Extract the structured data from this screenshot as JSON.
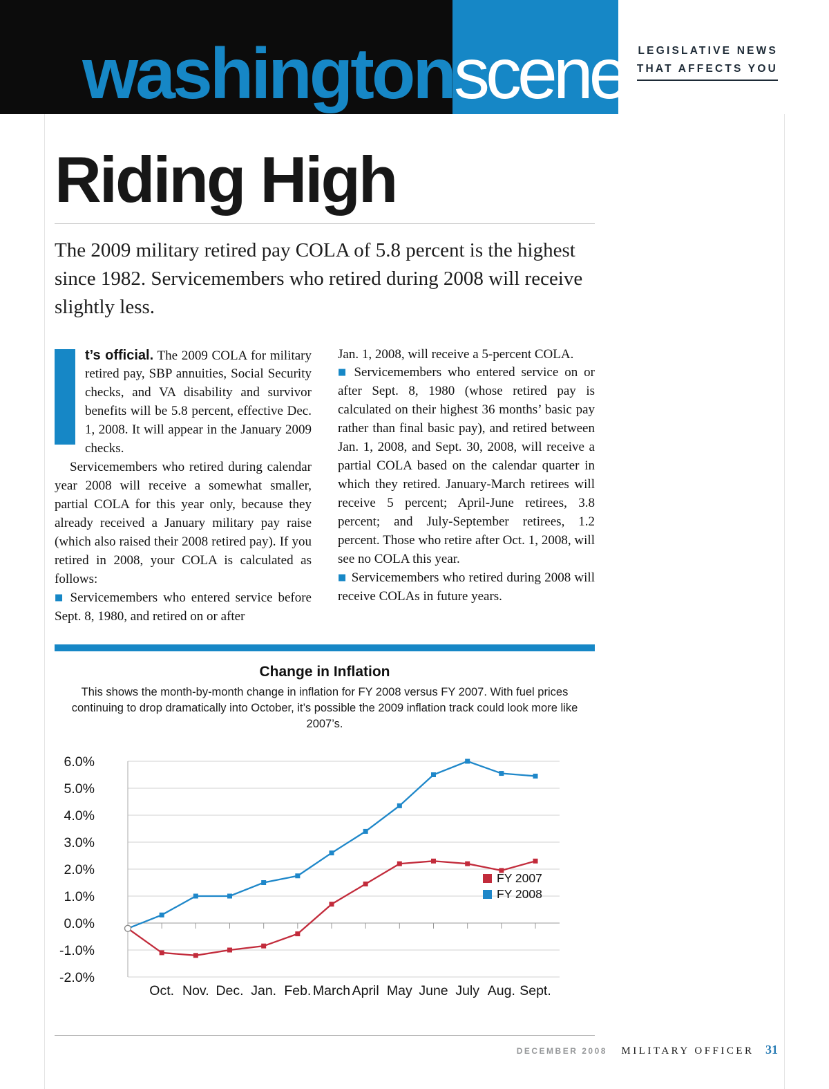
{
  "colors": {
    "accent_blue": "#1687c6",
    "masthead_black": "#0c0c0c",
    "line_red": "#c22b3b",
    "line_blue": "#1e87c9"
  },
  "header": {
    "brand_left": "washington",
    "brand_right": "scene",
    "tagline_line1": "LEGISLATIVE NEWS",
    "tagline_line2": "THAT AFFECTS YOU"
  },
  "article": {
    "title": "Riding High",
    "deck": "The 2009 military retired pay COLA of 5.8 percent is the highest since 1982. Servicemembers who retired during 2008 will receive slightly less.",
    "drop_cap": "I",
    "columns": [
      [
        {
          "style": "lead",
          "bold": "t’s official.",
          "text": " The 2009 COLA for military retired pay, SBP annuities, Social Security checks, and VA disability and survivor benefits will be 5.8 percent, effective Dec. 1, 2008. It will appear in the January 2009 checks."
        },
        {
          "style": "indent",
          "text": "Servicemembers who retired during calendar year 2008 will receive a somewhat smaller, partial COLA for this year only, because they already received a January military pay raise (which also raised their 2008 retired pay). If you retired in 2008, your COLA is calculated as follows:"
        },
        {
          "style": "bullet",
          "text": "Servicemembers who entered service before Sept. 8, 1980, and retired on or after"
        }
      ],
      [
        {
          "style": "plain",
          "text": "Jan. 1, 2008, will receive a 5-percent COLA."
        },
        {
          "style": "bullet",
          "text": "Servicemembers who entered service on or after Sept. 8, 1980 (whose retired pay is calculated on their highest 36 months’ basic pay rather than final basic pay), and retired between Jan. 1, 2008, and Sept. 30, 2008, will receive a partial COLA based on the calendar quarter in which they retired. January-March retirees will receive 5 percent; April-June retirees, 3.8 percent; and July-September retirees, 1.2 percent. Those who retire after Oct. 1, 2008, will see no COLA this year."
        },
        {
          "style": "bullet",
          "text": "Servicemembers who retired during 2008 will receive COLAs in future years."
        }
      ]
    ]
  },
  "chart_section": {
    "title": "Change in Inflation",
    "description": "This shows the month-by-month change in inflation for FY 2008 versus FY 2007. With fuel prices continuing to drop dramatically into October, it’s possible the 2009 inflation track could look more like 2007’s."
  },
  "chart_data": {
    "type": "line",
    "title": "Change in Inflation",
    "categories": [
      "Oct.",
      "Nov.",
      "Dec.",
      "Jan.",
      "Feb.",
      "March",
      "April",
      "May",
      "June",
      "July",
      "Aug.",
      "Sept."
    ],
    "y_ticks": [
      "6.0%",
      "5.0%",
      "4.0%",
      "3.0%",
      "2.0%",
      "1.0%",
      "0.0%",
      "-1.0%",
      "-2.0%"
    ],
    "ylim": [
      -2,
      6
    ],
    "origin_value": -0.2,
    "grid": true,
    "legend_position": "middle-right",
    "series": [
      {
        "name": "FY 2007",
        "color": "#c22b3b",
        "values": [
          -1.1,
          -1.2,
          -1.0,
          -0.85,
          -0.4,
          0.7,
          1.45,
          2.2,
          2.3,
          2.2,
          1.95,
          2.3
        ]
      },
      {
        "name": "FY 2008",
        "color": "#1e87c9",
        "values": [
          0.3,
          1.0,
          1.0,
          1.5,
          1.75,
          2.6,
          3.4,
          4.35,
          5.5,
          6.0,
          5.55,
          5.45
        ]
      }
    ]
  },
  "footer": {
    "date": "DECEMBER 2008",
    "publication": "MILITARY OFFICER",
    "page_number": "31"
  }
}
